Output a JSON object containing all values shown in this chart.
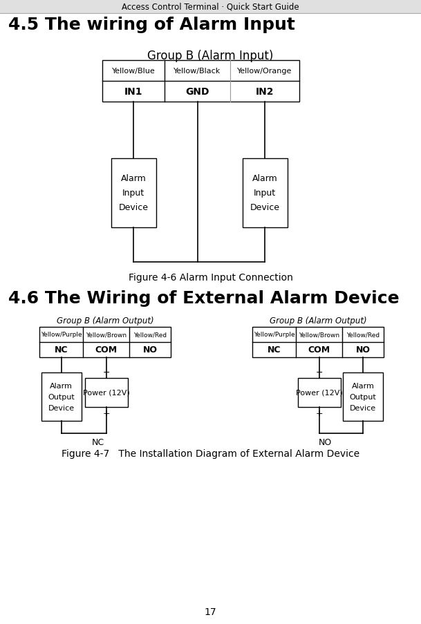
{
  "page_title": "Access Control Terminal · Quick Start Guide",
  "section1_title": "4.5 The wiring of Alarm Input",
  "section1_group_label": "Group B (Alarm Input)",
  "table1_row1": [
    "Yellow/Blue",
    "Yellow/Black",
    "Yellow/Orange"
  ],
  "table1_row2": [
    "IN1",
    "GND",
    "IN2"
  ],
  "device1_label": "Alarm\nInput\nDevice",
  "figure1_caption": "Figure 4-6 Alarm Input Connection",
  "section2_title": "4.6 The Wiring of External Alarm Device",
  "section2_group_label": "Group B (Alarm Output)",
  "table2_row1": [
    "Yellow/Purple",
    "Yellow/Brown",
    "Yellow/Red"
  ],
  "table2_row2": [
    "NC",
    "COM",
    "NO"
  ],
  "device2_label": "Alarm\nOutput\nDevice",
  "power_label": "Power (12V)",
  "nc_label": "NC",
  "no_label": "NO",
  "figure2_caption": "Figure 4-7   The Installation Diagram of External Alarm Device",
  "page_number": "17",
  "bg_color": "#ffffff",
  "header_bg": "#e0e0e0",
  "line_color": "#000000",
  "text_color": "#000000"
}
